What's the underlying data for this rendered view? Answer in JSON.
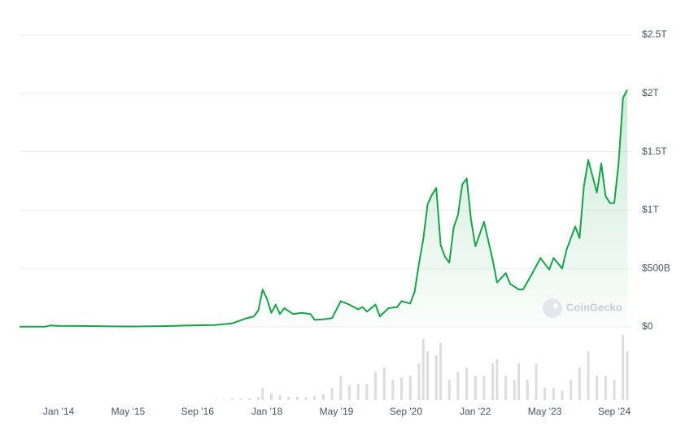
{
  "chart_data": {
    "type": "area",
    "color": "#16a34a",
    "grid": true,
    "watermark": "CoinGecko",
    "xlim": [
      "2013-04",
      "2024-12"
    ],
    "xticks": [
      {
        "value": "2014-01",
        "label": "Jan '14"
      },
      {
        "value": "2015-05",
        "label": "May '15"
      },
      {
        "value": "2016-09",
        "label": "Sep '16"
      },
      {
        "value": "2018-01",
        "label": "Jan '18"
      },
      {
        "value": "2019-05",
        "label": "May '19"
      },
      {
        "value": "2020-09",
        "label": "Sep '20"
      },
      {
        "value": "2022-01",
        "label": "Jan '22"
      },
      {
        "value": "2023-05",
        "label": "May '23"
      },
      {
        "value": "2024-09",
        "label": "Sep '24"
      }
    ],
    "ylim": [
      0,
      2500000000000.0
    ],
    "yticks": [
      {
        "value": 0,
        "label": "$0"
      },
      {
        "value": 500000000000.0,
        "label": "$500B"
      },
      {
        "value": 1000000000000.0,
        "label": "$1T"
      },
      {
        "value": 1500000000000.0,
        "label": "$1.5T"
      },
      {
        "value": 2000000000000.0,
        "label": "$2T"
      },
      {
        "value": 2500000000000.0,
        "label": "$2.5T"
      }
    ],
    "x": [
      "2013-04",
      "2013-10",
      "2013-11",
      "2014-01",
      "2014-06",
      "2015-01",
      "2015-06",
      "2016-01",
      "2016-06",
      "2017-01",
      "2017-05",
      "2017-08",
      "2017-10",
      "2017-11",
      "2017-12",
      "2018-01",
      "2018-02",
      "2018-03",
      "2018-04",
      "2018-05",
      "2018-07",
      "2018-09",
      "2018-11",
      "2018-12",
      "2019-02",
      "2019-04",
      "2019-06",
      "2019-08",
      "2019-10",
      "2019-11",
      "2019-12",
      "2020-02",
      "2020-03",
      "2020-05",
      "2020-07",
      "2020-08",
      "2020-10",
      "2020-11",
      "2020-12",
      "2021-01",
      "2021-02",
      "2021-03",
      "2021-04",
      "2021-05",
      "2021-06",
      "2021-07",
      "2021-08",
      "2021-09",
      "2021-10",
      "2021-11",
      "2021-12",
      "2022-01",
      "2022-03",
      "2022-05",
      "2022-06",
      "2022-08",
      "2022-09",
      "2022-11",
      "2022-12",
      "2023-02",
      "2023-04",
      "2023-06",
      "2023-07",
      "2023-09",
      "2023-10",
      "2023-12",
      "2024-01",
      "2024-02",
      "2024-03",
      "2024-05",
      "2024-06",
      "2024-07",
      "2024-08",
      "2024-09",
      "2024-10",
      "2024-11",
      "2024-12"
    ],
    "values": [
      1500000000.0,
      1800000000.0,
      12000000000.0,
      9000000000.0,
      8000000000.0,
      4000000000.0,
      3500000000.0,
      6500000000.0,
      11000000000.0,
      16000000000.0,
      30000000000.0,
      70000000000.0,
      90000000000.0,
      140000000000.0,
      320000000000.0,
      240000000000.0,
      120000000000.0,
      190000000000.0,
      110000000000.0,
      160000000000.0,
      110000000000.0,
      120000000000.0,
      110000000000.0,
      60000000000.0,
      65000000000.0,
      75000000000.0,
      220000000000.0,
      190000000000.0,
      150000000000.0,
      170000000000.0,
      130000000000.0,
      190000000000.0,
      90000000000.0,
      160000000000.0,
      170000000000.0,
      220000000000.0,
      200000000000.0,
      300000000000.0,
      540000000000.0,
      750000000000.0,
      1050000000000.0,
      1130000000000.0,
      1190000000000.0,
      700000000000.0,
      600000000000.0,
      550000000000.0,
      850000000000.0,
      960000000000.0,
      1220000000000.0,
      1270000000000.0,
      920000000000.0,
      690000000000.0,
      900000000000.0,
      570000000000.0,
      380000000000.0,
      460000000000.0,
      370000000000.0,
      320000000000.0,
      320000000000.0,
      450000000000.0,
      590000000000.0,
      490000000000.0,
      590000000000.0,
      500000000000.0,
      660000000000.0,
      860000000000.0,
      760000000000.0,
      1200000000000.0,
      1430000000000.0,
      1150000000000.0,
      1400000000000.0,
      1120000000000.0,
      1060000000000.0,
      1060000000000.0,
      1400000000000.0,
      1960000000000.0,
      2030000000000.0
    ],
    "volume": {
      "type": "bar",
      "color": "#dcdcdc",
      "x": [
        "2017-01",
        "2017-03",
        "2017-05",
        "2017-07",
        "2017-09",
        "2017-11",
        "2017-12",
        "2018-02",
        "2018-04",
        "2018-06",
        "2018-08",
        "2018-10",
        "2018-12",
        "2019-02",
        "2019-04",
        "2019-06",
        "2019-08",
        "2019-10",
        "2019-12",
        "2020-02",
        "2020-04",
        "2020-06",
        "2020-08",
        "2020-10",
        "2020-12",
        "2021-01",
        "2021-02",
        "2021-04",
        "2021-05",
        "2021-07",
        "2021-09",
        "2021-11",
        "2022-01",
        "2022-03",
        "2022-05",
        "2022-06",
        "2022-08",
        "2022-10",
        "2022-11",
        "2023-01",
        "2023-03",
        "2023-05",
        "2023-07",
        "2023-09",
        "2023-11",
        "2024-01",
        "2024-03",
        "2024-05",
        "2024-07",
        "2024-09",
        "2024-11",
        "2024-12"
      ],
      "values": [
        300000000.0,
        500000000.0,
        1500000000.0,
        1500000000.0,
        2000000000.0,
        4000000000.0,
        15000000000.0,
        8000000000.0,
        6000000000.0,
        4000000000.0,
        4000000000.0,
        3500000000.0,
        5000000000.0,
        7000000000.0,
        15000000000.0,
        30000000000.0,
        18000000000.0,
        20000000000.0,
        20000000000.0,
        35000000000.0,
        40000000000.0,
        25000000000.0,
        28000000000.0,
        30000000000.0,
        45000000000.0,
        75000000000.0,
        60000000000.0,
        55000000000.0,
        70000000000.0,
        25000000000.0,
        35000000000.0,
        40000000000.0,
        30000000000.0,
        30000000000.0,
        45000000000.0,
        50000000000.0,
        30000000000.0,
        25000000000.0,
        45000000000.0,
        25000000000.0,
        45000000000.0,
        15000000000.0,
        15000000000.0,
        12000000000.0,
        25000000000.0,
        40000000000.0,
        60000000000.0,
        30000000000.0,
        30000000000.0,
        25000000000.0,
        80000000000.0,
        60000000000.0
      ]
    }
  }
}
